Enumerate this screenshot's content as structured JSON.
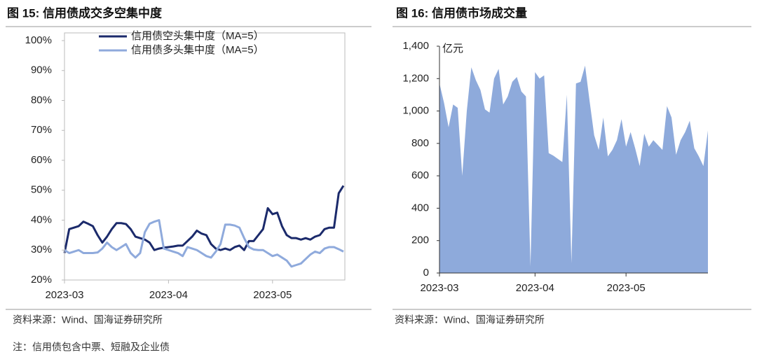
{
  "chart_data": [
    {
      "type": "line",
      "title": "图 15:  信用债成交多空集中度",
      "source": "资料来源：Wind、国海证券研究所",
      "categories": [
        "2023-03",
        null,
        null,
        null,
        null,
        null,
        null,
        null,
        null,
        null,
        null,
        null,
        null,
        null,
        null,
        null,
        null,
        null,
        null,
        null,
        null,
        null,
        "2023-04",
        null,
        null,
        null,
        null,
        null,
        null,
        null,
        null,
        null,
        null,
        null,
        null,
        null,
        null,
        null,
        null,
        null,
        null,
        null,
        null,
        null,
        "2023-05",
        null,
        null,
        null,
        null,
        null,
        null,
        null,
        null,
        null,
        null,
        null,
        null,
        null,
        null,
        null
      ],
      "series": [
        {
          "name": "信用债空头集中度（MA=5）",
          "color": "#1b2a6b",
          "values": [
            29,
            37,
            37.5,
            38,
            39.5,
            38.8,
            38,
            35,
            32.5,
            34.5,
            37,
            39,
            39,
            38.7,
            37,
            34.5,
            34,
            33.5,
            32.5,
            30,
            30.5,
            30.8,
            31,
            31.2,
            31.5,
            31.5,
            33,
            34.5,
            36.5,
            35.5,
            35,
            32,
            30.5,
            30,
            30.5,
            30,
            31,
            31.5,
            30,
            33,
            33,
            35,
            37,
            44,
            42,
            42.5,
            38,
            35,
            34,
            34,
            33.5,
            34,
            33.5,
            34.5,
            35,
            37,
            37.5,
            37.5,
            49,
            51.5
          ]
        },
        {
          "name": "信用债多头集中度（MA=5）",
          "color": "#8faadc",
          "values": [
            30,
            29,
            29.5,
            30,
            29,
            29,
            29,
            29.2,
            30.5,
            32.5,
            31,
            30,
            31,
            32,
            29,
            27.5,
            29,
            36,
            38.8,
            39.5,
            40,
            30.5,
            30,
            29.5,
            29,
            28,
            31,
            30.5,
            30,
            29,
            28,
            27.5,
            29.5,
            32,
            38.5,
            38.5,
            38.2,
            37.5,
            34,
            31,
            30.2,
            30,
            30,
            29,
            28,
            28.5,
            27.5,
            26.5,
            24.5,
            25,
            25.5,
            27,
            28.5,
            29.5,
            29,
            30.5,
            31,
            31,
            30.3,
            29.5
          ]
        }
      ],
      "ylim": [
        20,
        100
      ],
      "yticks": [
        {
          "value": 20,
          "label": "20%"
        },
        {
          "value": 30,
          "label": "30%"
        },
        {
          "value": 40,
          "label": "40%"
        },
        {
          "value": 50,
          "label": "50%"
        },
        {
          "value": 60,
          "label": "60%"
        },
        {
          "value": 70,
          "label": "70%"
        },
        {
          "value": 80,
          "label": "80%"
        },
        {
          "value": 90,
          "label": "90%"
        },
        {
          "value": 100,
          "label": "100%"
        }
      ],
      "legend": "upper center",
      "grid": false
    },
    {
      "type": "area",
      "title": "图 16:  信用债市场成交量",
      "source": "资料来源：Wind、国海证券研究所",
      "annotation": "亿元",
      "categories": [
        "2023-03",
        null,
        null,
        null,
        null,
        null,
        null,
        null,
        null,
        null,
        null,
        null,
        null,
        null,
        null,
        null,
        null,
        null,
        null,
        null,
        null,
        "2023-04",
        null,
        null,
        null,
        null,
        null,
        null,
        null,
        null,
        null,
        null,
        null,
        null,
        null,
        null,
        null,
        null,
        null,
        null,
        null,
        "2023-05",
        null,
        null,
        null,
        null,
        null,
        null,
        null,
        null,
        null,
        null,
        null,
        null,
        null,
        null,
        null,
        null,
        null,
        null
      ],
      "values": [
        1170,
        1050,
        900,
        1040,
        1020,
        600,
        1000,
        1270,
        1190,
        1130,
        1010,
        990,
        1200,
        1260,
        1040,
        1090,
        1180,
        1210,
        1120,
        1090,
        40,
        1240,
        1200,
        1220,
        740,
        725,
        705,
        685,
        1100,
        60,
        1170,
        1180,
        1280,
        1060,
        850,
        760,
        960,
        720,
        760,
        820,
        950,
        780,
        870,
        770,
        660,
        860,
        780,
        820,
        790,
        760,
        1030,
        960,
        730,
        820,
        870,
        940,
        770,
        720,
        660,
        880
      ],
      "color": "#8eaadb",
      "ylim": [
        0,
        1400
      ],
      "yticks": [
        0,
        200,
        400,
        600,
        800,
        {
          "value": 1000,
          "label": "1,000"
        },
        {
          "value": 1200,
          "label": "1,200"
        },
        {
          "value": 1400,
          "label": "1,400"
        }
      ],
      "grid": false
    }
  ],
  "note": "注：信用债包含中票、短融及企业债"
}
